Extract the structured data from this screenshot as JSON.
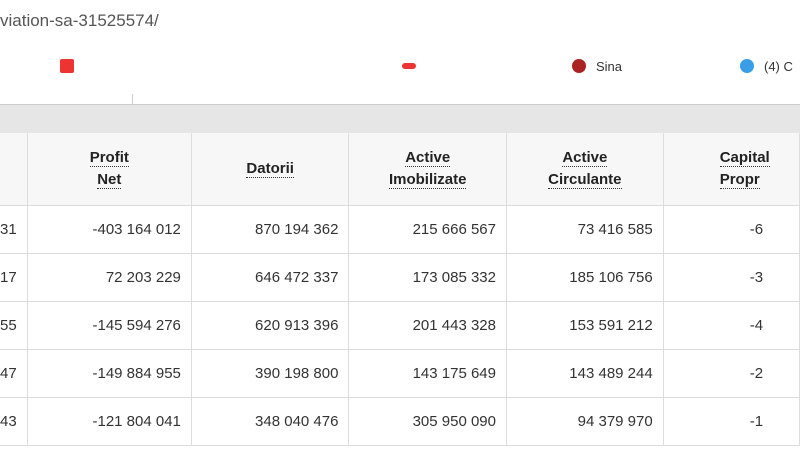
{
  "address_bar": {
    "url": "viation-sa-31525574/"
  },
  "bookmarks": [
    "Sina",
    "(4) C"
  ],
  "table": {
    "headers": [
      [
        "Profit",
        "Net"
      ],
      [
        "Datorii"
      ],
      [
        "Active",
        "Imobilizate"
      ],
      [
        "Active",
        "Circulante"
      ],
      [
        "Capital",
        "Propr"
      ]
    ],
    "rows": [
      [
        "31",
        "-403 164 012",
        "870 194 362",
        "215 666 567",
        "73 416 585",
        "-6"
      ],
      [
        "17",
        "72 203 229",
        "646 472 337",
        "173 085 332",
        "185 106 756",
        "-3"
      ],
      [
        "55",
        "-145 594 276",
        "620 913 396",
        "201 443 328",
        "153 591 212",
        "-4"
      ],
      [
        "47",
        "-149 884 955",
        "390 198 800",
        "143 175 649",
        "143 489 244",
        "-2"
      ],
      [
        "43",
        "-121 804 041",
        "348 040 476",
        "305 950 090",
        "94 379 970",
        "-1"
      ]
    ]
  }
}
